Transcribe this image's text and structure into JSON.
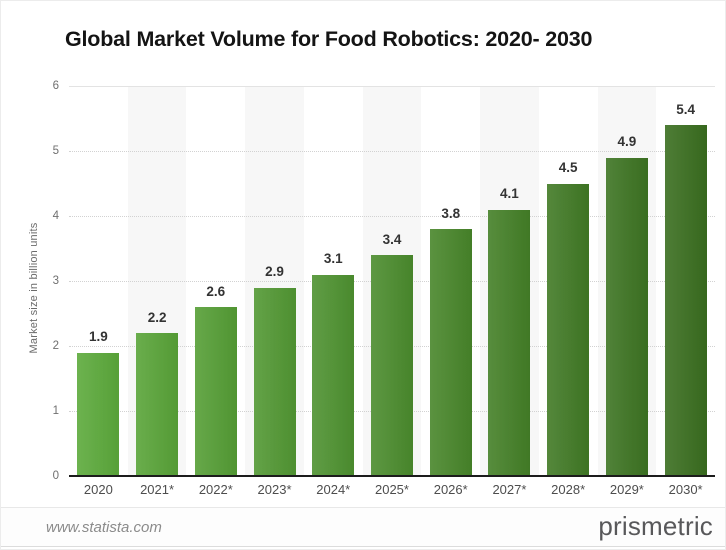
{
  "header": {
    "title": "Global Market Volume for Food Robotics: 2020- 2030"
  },
  "chart_data": {
    "type": "bar",
    "title": "Global Market Volume for Food Robotics: 2020- 2030",
    "xlabel": "",
    "ylabel": "Market size in billion units",
    "ylim": [
      0,
      6
    ],
    "yticks": [
      0,
      1,
      2,
      3,
      4,
      5,
      6
    ],
    "grid": "horizontal-dotted",
    "legend": "none",
    "categories": [
      "2020",
      "2021*",
      "2022*",
      "2023*",
      "2024*",
      "2025*",
      "2026*",
      "2027*",
      "2028*",
      "2029*",
      "2030*"
    ],
    "values": [
      1.9,
      2.2,
      2.6,
      2.9,
      3.1,
      3.4,
      3.8,
      4.1,
      4.5,
      4.9,
      5.4
    ],
    "bar_colors": [
      "#5CAA3B",
      "#59A438",
      "#559E35",
      "#529833",
      "#4E9230",
      "#4B8C2D",
      "#48862A",
      "#448027",
      "#417A25",
      "#3D7422",
      "#3A6E1F"
    ],
    "band_color": "#f7f7f7",
    "axis_line_color": "#1c1c1c",
    "value_label_color": "#333333"
  },
  "footer": {
    "source": "www.statista.com",
    "brand": "prismetric"
  }
}
